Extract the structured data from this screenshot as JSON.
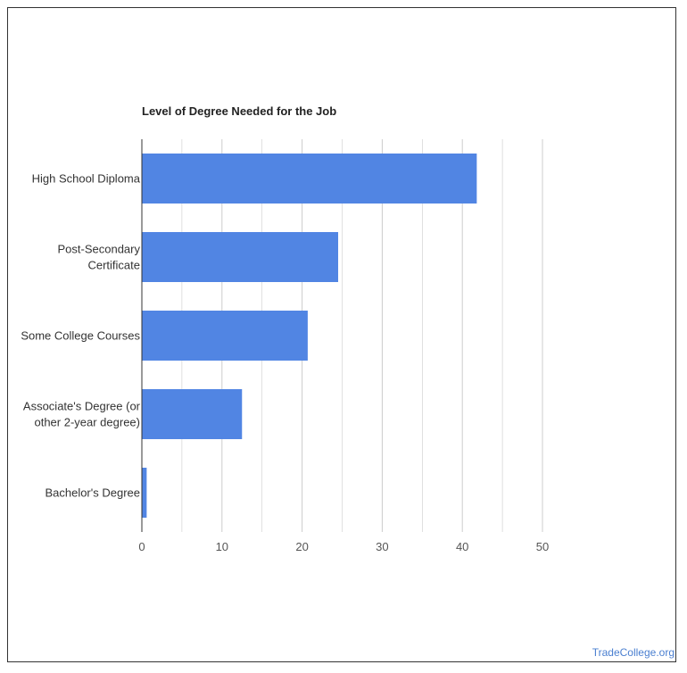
{
  "chart_data": {
    "type": "bar",
    "orientation": "horizontal",
    "title": "Level of Degree Needed for the Job",
    "categories": [
      [
        "High School Diploma"
      ],
      [
        "Post-Secondary",
        "Certificate"
      ],
      [
        "Some College Courses"
      ],
      [
        "Associate's Degree (or",
        "other 2-year degree)"
      ],
      [
        "Bachelor's Degree"
      ]
    ],
    "values": [
      41.8,
      24.5,
      20.7,
      12.5,
      0.6
    ],
    "xlim": [
      0,
      50
    ],
    "xticks": [
      "0",
      "10",
      "20",
      "30",
      "40",
      "50"
    ],
    "grid": true,
    "bar_color": "#5185e3"
  },
  "watermark": "TradeCollege.org"
}
